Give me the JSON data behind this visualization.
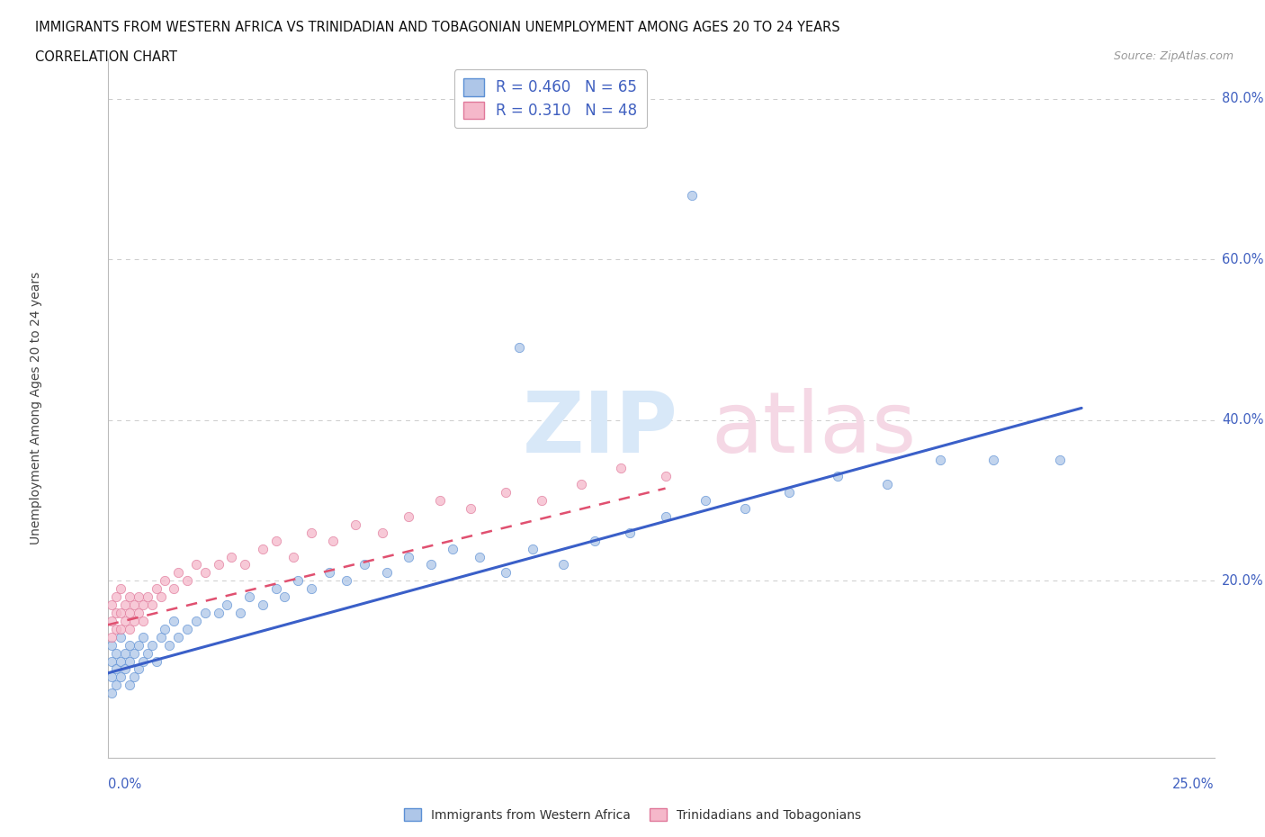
{
  "title_line1": "IMMIGRANTS FROM WESTERN AFRICA VS TRINIDADIAN AND TOBAGONIAN UNEMPLOYMENT AMONG AGES 20 TO 24 YEARS",
  "title_line2": "CORRELATION CHART",
  "source_text": "Source: ZipAtlas.com",
  "ylabel": "Unemployment Among Ages 20 to 24 years",
  "xmin": 0.0,
  "xmax": 0.25,
  "ymin": -0.02,
  "ymax": 0.85,
  "blue_R": 0.46,
  "blue_N": 65,
  "pink_R": 0.31,
  "pink_N": 48,
  "blue_color": "#aec6e8",
  "pink_color": "#f5b8ca",
  "blue_edge_color": "#5b8fd4",
  "pink_edge_color": "#e0789a",
  "blue_line_color": "#3a5fc8",
  "pink_line_color": "#e05070",
  "ytick_vals": [
    0.0,
    0.2,
    0.4,
    0.6,
    0.8
  ],
  "ytick_labels": [
    "",
    "20.0%",
    "40.0%",
    "60.0%",
    "80.0%"
  ],
  "watermark_zip_color": "#dce8f5",
  "watermark_atlas_color": "#f0d8e5",
  "legend_label_color": "#4060c0",
  "axis_label_color": "#4060c0",
  "blue_scatter_x": [
    0.001,
    0.001,
    0.001,
    0.001,
    0.002,
    0.002,
    0.002,
    0.003,
    0.003,
    0.003,
    0.004,
    0.004,
    0.005,
    0.005,
    0.005,
    0.006,
    0.006,
    0.007,
    0.007,
    0.008,
    0.008,
    0.009,
    0.01,
    0.011,
    0.012,
    0.013,
    0.014,
    0.015,
    0.016,
    0.018,
    0.02,
    0.022,
    0.025,
    0.027,
    0.03,
    0.032,
    0.035,
    0.038,
    0.04,
    0.043,
    0.046,
    0.05,
    0.054,
    0.058,
    0.063,
    0.068,
    0.073,
    0.078,
    0.084,
    0.09,
    0.096,
    0.103,
    0.11,
    0.118,
    0.126,
    0.135,
    0.144,
    0.154,
    0.165,
    0.176,
    0.188,
    0.2,
    0.215,
    0.093,
    0.132
  ],
  "blue_scatter_y": [
    0.06,
    0.08,
    0.1,
    0.12,
    0.07,
    0.09,
    0.11,
    0.08,
    0.1,
    0.13,
    0.09,
    0.11,
    0.07,
    0.1,
    0.12,
    0.08,
    0.11,
    0.09,
    0.12,
    0.1,
    0.13,
    0.11,
    0.12,
    0.1,
    0.13,
    0.14,
    0.12,
    0.15,
    0.13,
    0.14,
    0.15,
    0.16,
    0.16,
    0.17,
    0.16,
    0.18,
    0.17,
    0.19,
    0.18,
    0.2,
    0.19,
    0.21,
    0.2,
    0.22,
    0.21,
    0.23,
    0.22,
    0.24,
    0.23,
    0.21,
    0.24,
    0.22,
    0.25,
    0.26,
    0.28,
    0.3,
    0.29,
    0.31,
    0.33,
    0.32,
    0.35,
    0.35,
    0.35,
    0.49,
    0.68
  ],
  "pink_scatter_x": [
    0.001,
    0.001,
    0.001,
    0.002,
    0.002,
    0.002,
    0.003,
    0.003,
    0.003,
    0.004,
    0.004,
    0.005,
    0.005,
    0.005,
    0.006,
    0.006,
    0.007,
    0.007,
    0.008,
    0.008,
    0.009,
    0.01,
    0.011,
    0.012,
    0.013,
    0.015,
    0.016,
    0.018,
    0.02,
    0.022,
    0.025,
    0.028,
    0.031,
    0.035,
    0.038,
    0.042,
    0.046,
    0.051,
    0.056,
    0.062,
    0.068,
    0.075,
    0.082,
    0.09,
    0.098,
    0.107,
    0.116,
    0.126
  ],
  "pink_scatter_y": [
    0.13,
    0.15,
    0.17,
    0.14,
    0.16,
    0.18,
    0.14,
    0.16,
    0.19,
    0.15,
    0.17,
    0.14,
    0.16,
    0.18,
    0.15,
    0.17,
    0.16,
    0.18,
    0.15,
    0.17,
    0.18,
    0.17,
    0.19,
    0.18,
    0.2,
    0.19,
    0.21,
    0.2,
    0.22,
    0.21,
    0.22,
    0.23,
    0.22,
    0.24,
    0.25,
    0.23,
    0.26,
    0.25,
    0.27,
    0.26,
    0.28,
    0.3,
    0.29,
    0.31,
    0.3,
    0.32,
    0.34,
    0.33
  ],
  "blue_trend_x": [
    0.0,
    0.22
  ],
  "blue_trend_y": [
    0.085,
    0.415
  ],
  "pink_trend_x": [
    0.0,
    0.126
  ],
  "pink_trend_y": [
    0.145,
    0.315
  ]
}
